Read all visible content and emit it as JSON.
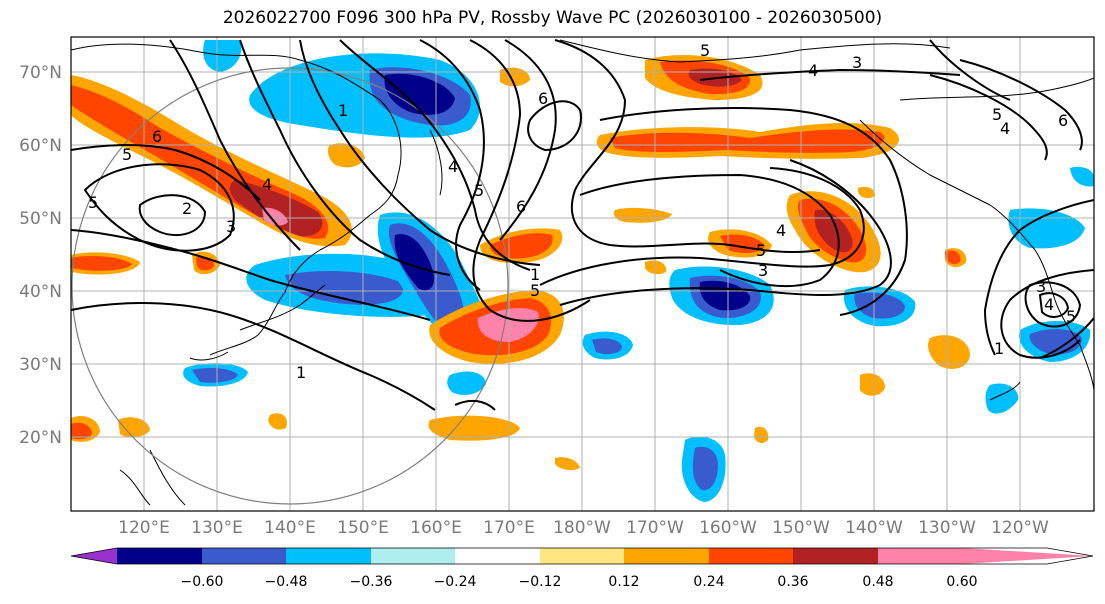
{
  "title": "2026022700 F096 300 hPa PV, Rossby Wave PC (2026030100 - 2026030500)",
  "map": {
    "lat_ticks": [
      "70°N",
      "60°N",
      "50°N",
      "40°N",
      "30°N",
      "20°N"
    ],
    "lon_ticks": [
      "120°E",
      "130°E",
      "140°E",
      "150°E",
      "160°E",
      "170°E",
      "180°W",
      "170°W",
      "160°W",
      "150°W",
      "140°W",
      "130°W",
      "120°W"
    ],
    "contour_labels": [
      "6",
      "5",
      "1",
      "2",
      "3",
      "4",
      "1",
      "5",
      "4",
      "6",
      "5",
      "1",
      "6",
      "5",
      "4",
      "5",
      "4",
      "3",
      "3",
      "5",
      "4",
      "6",
      "3",
      "1",
      "5",
      "4",
      "5"
    ]
  },
  "colorbar": {
    "colors": [
      "#9932cc",
      "#00008b",
      "#3a5bcd",
      "#00bfff",
      "#afeeee",
      "#ffffff",
      "#ffe680",
      "#ffa500",
      "#ff4500",
      "#b22222",
      "#ff82ab",
      "#ff82ab"
    ],
    "tick_labels": [
      "−0.60",
      "−0.48",
      "−0.36",
      "−0.24",
      "−0.12",
      "0.12",
      "0.24",
      "0.36",
      "0.48",
      "0.60"
    ]
  },
  "colors": {
    "very_strong_negative": "#00008b",
    "strong_negative": "#3a5bcd",
    "moderate_negative": "#00bfff",
    "weak_negative": "#afeeee",
    "weak_positive": "#ffe680",
    "moderate_positive": "#ffa500",
    "strong_positive": "#ff4500",
    "very_strong_positive": "#b22222",
    "extreme_positive": "#ff82ab"
  }
}
